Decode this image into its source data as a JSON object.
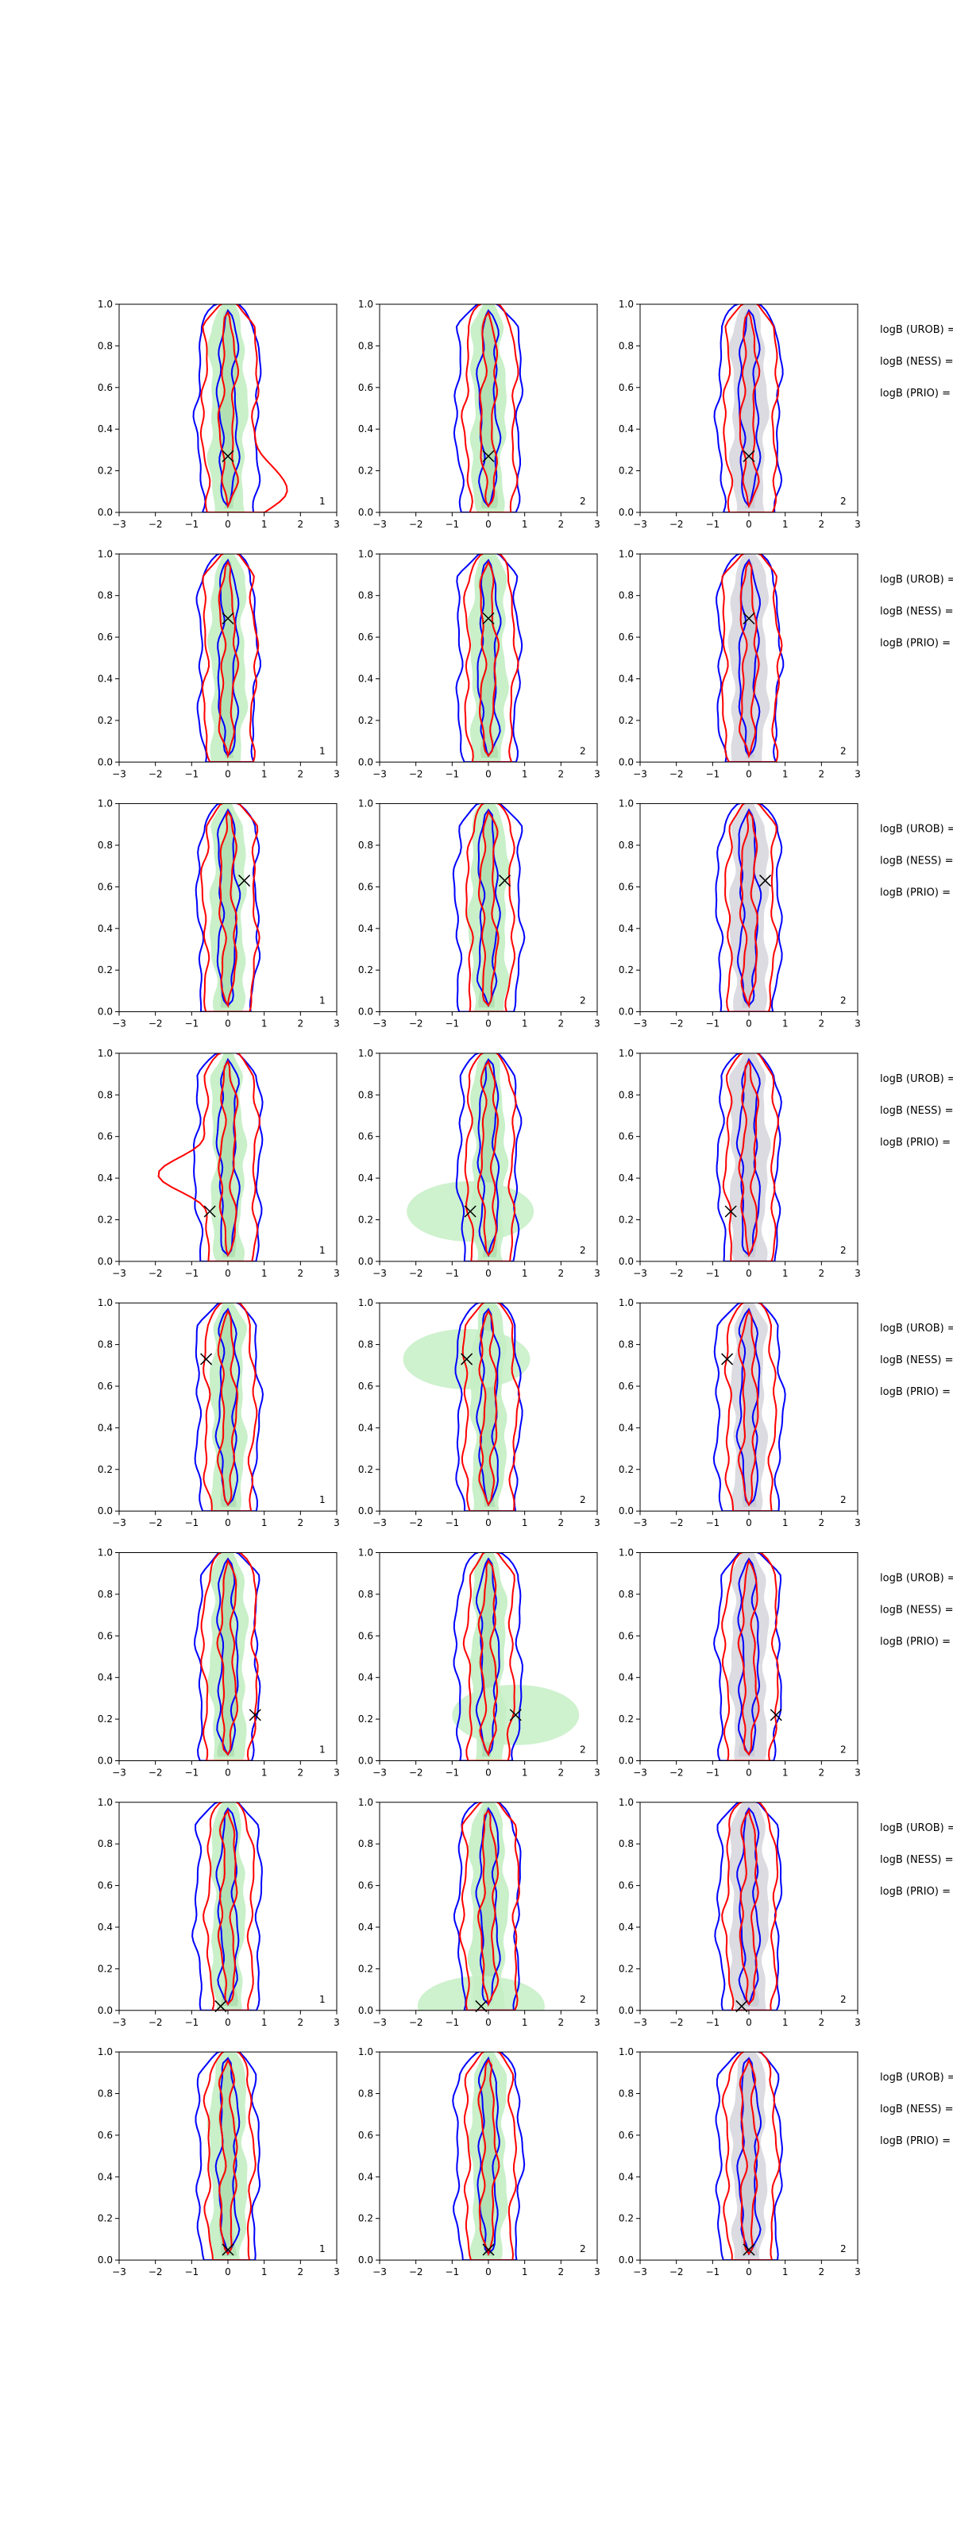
{
  "chart_data": {
    "type": "contour",
    "layout": "8 rows x 3 columns of posterior density contour panels",
    "x_ticks": [
      "−3",
      "−2",
      "−1",
      "0",
      "1",
      "2",
      "3"
    ],
    "y_ticks": [
      "0.0",
      "0.2",
      "0.4",
      "0.6",
      "0.8",
      "1.0"
    ],
    "xlim": [
      -3,
      3
    ],
    "ylim": [
      0,
      1
    ],
    "colors": {
      "blue": "#0000ff",
      "red": "#ff0000",
      "green_fill": "#c6efc6",
      "grey_fill": "#d9d9df"
    },
    "legend_labels": [
      "logB (UROB) =",
      "logB (NESS) =",
      "logB (PRIO) ="
    ],
    "rows": [
      {
        "marker": [
          0.0,
          0.27
        ],
        "panel_labels": [
          "1",
          "2",
          "2"
        ]
      },
      {
        "marker": [
          0.0,
          0.69
        ],
        "panel_labels": [
          "1",
          "2",
          "2"
        ]
      },
      {
        "marker": [
          0.45,
          0.63
        ],
        "panel_labels": [
          "1",
          "2",
          "2"
        ]
      },
      {
        "marker": [
          -0.5,
          0.24
        ],
        "panel_labels": [
          "1",
          "2",
          "2"
        ]
      },
      {
        "marker": [
          -0.6,
          0.73
        ],
        "panel_labels": [
          "1",
          "2",
          "2"
        ]
      },
      {
        "marker": [
          0.75,
          0.22
        ],
        "panel_labels": [
          "1",
          "2",
          "2"
        ]
      },
      {
        "marker": [
          -0.2,
          0.02
        ],
        "panel_labels": [
          "1",
          "2",
          "2"
        ]
      },
      {
        "marker": [
          0.0,
          0.05
        ],
        "panel_labels": [
          "1",
          "2",
          "2"
        ]
      }
    ]
  }
}
